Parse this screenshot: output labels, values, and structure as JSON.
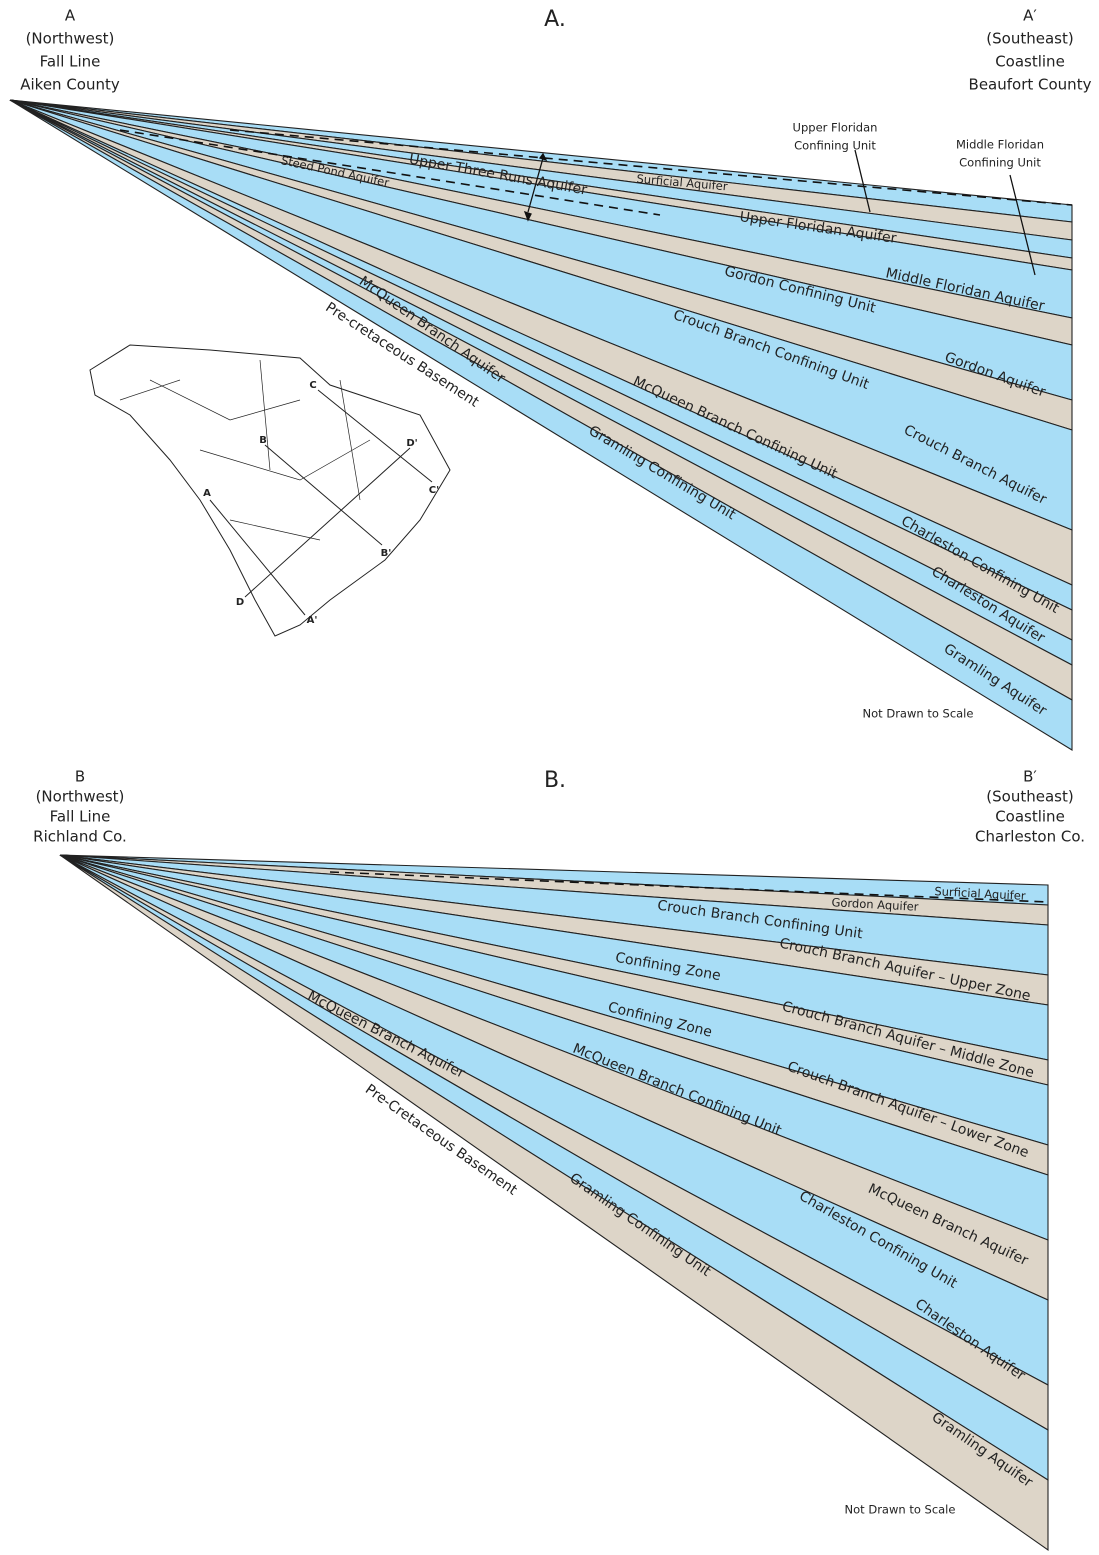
{
  "section_a": {
    "title": "A.",
    "left_label": [
      "A",
      "(Northwest)",
      "Fall Line",
      "Aiken County"
    ],
    "right_label": [
      "A′",
      "(Southeast)",
      "Coastline",
      "Beaufort County"
    ],
    "units": [
      "Surficial Aquifer",
      "Steed Pond Aquifer",
      "Upper Three Runs Aquifer",
      "Upper Floridan Aquifer",
      "Middle Floridan Aquifer",
      "Gordon Confining Unit",
      "Crouch Branch Confining Unit",
      "Gordon Aquifer",
      "McQueen Branch Aquifer",
      "Pre-cretaceous Basement",
      "McQueen Branch Confining Unit",
      "Crouch Branch Aquifer",
      "Gramling Confining Unit",
      "Charleston Confining Unit",
      "Charleston Aquifer",
      "Gramling Aquifer"
    ],
    "callouts": [
      [
        "Upper Floridan",
        "Confining Unit"
      ],
      [
        "Middle Floridan",
        "Confining Unit"
      ]
    ],
    "note": "Not Drawn to Scale",
    "map_labels": [
      "A",
      "A'",
      "B",
      "B'",
      "C",
      "C'",
      "D",
      "D'"
    ]
  },
  "section_b": {
    "title": "B.",
    "left_label": [
      "B",
      "(Northwest)",
      "Fall Line",
      "Richland Co."
    ],
    "right_label": [
      "B′",
      "(Southeast)",
      "Coastline",
      "Charleston Co."
    ],
    "units": [
      "Surficial Aquifer",
      "Gordon Aquifer",
      "Crouch Branch Confining Unit",
      "Confining Zone",
      "Crouch Branch Aquifer – Upper Zone",
      "Confining Zone",
      "Crouch Branch Aquifer – Middle Zone",
      "McQueen Branch Aquifer",
      "McQueen Branch Confining Unit",
      "Crouch Branch Aquifer – Lower Zone",
      "Pre-Cretaceous Basement",
      "Gramling Confining Unit",
      "McQueen Branch Aquifer",
      "Charleston Confining Unit",
      "Charleston Aquifer",
      "Gramling Aquifer"
    ],
    "note": "Not Drawn to Scale"
  }
}
